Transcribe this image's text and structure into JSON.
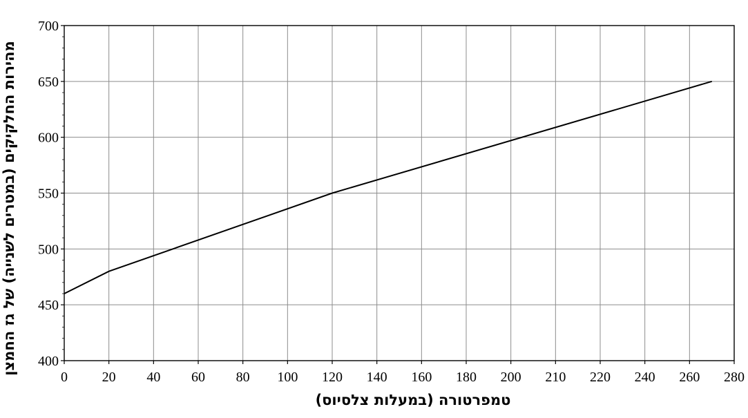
{
  "chart_data": {
    "type": "line",
    "title": "",
    "xlabel": "טמפרטורה (במעלות צלסיוס)",
    "ylabel": "מהירות החלקיקים (במטרים לשנייה) של גז החמצן",
    "x_tick_labels": [
      "0",
      "20",
      "40",
      "60",
      "80",
      "100",
      "120",
      "140",
      "160",
      "180",
      "200",
      "210",
      "220",
      "240",
      "260",
      "280"
    ],
    "y_ticks": [
      400,
      450,
      500,
      550,
      600,
      650,
      700
    ],
    "ylim": [
      400,
      700
    ],
    "grid": true,
    "series": [
      {
        "points": [
          {
            "x": "0",
            "y": 460
          },
          {
            "x": "20",
            "y": 480
          },
          {
            "x": "120",
            "y": 550
          },
          {
            "x": "270",
            "y": 650
          }
        ]
      }
    ]
  }
}
